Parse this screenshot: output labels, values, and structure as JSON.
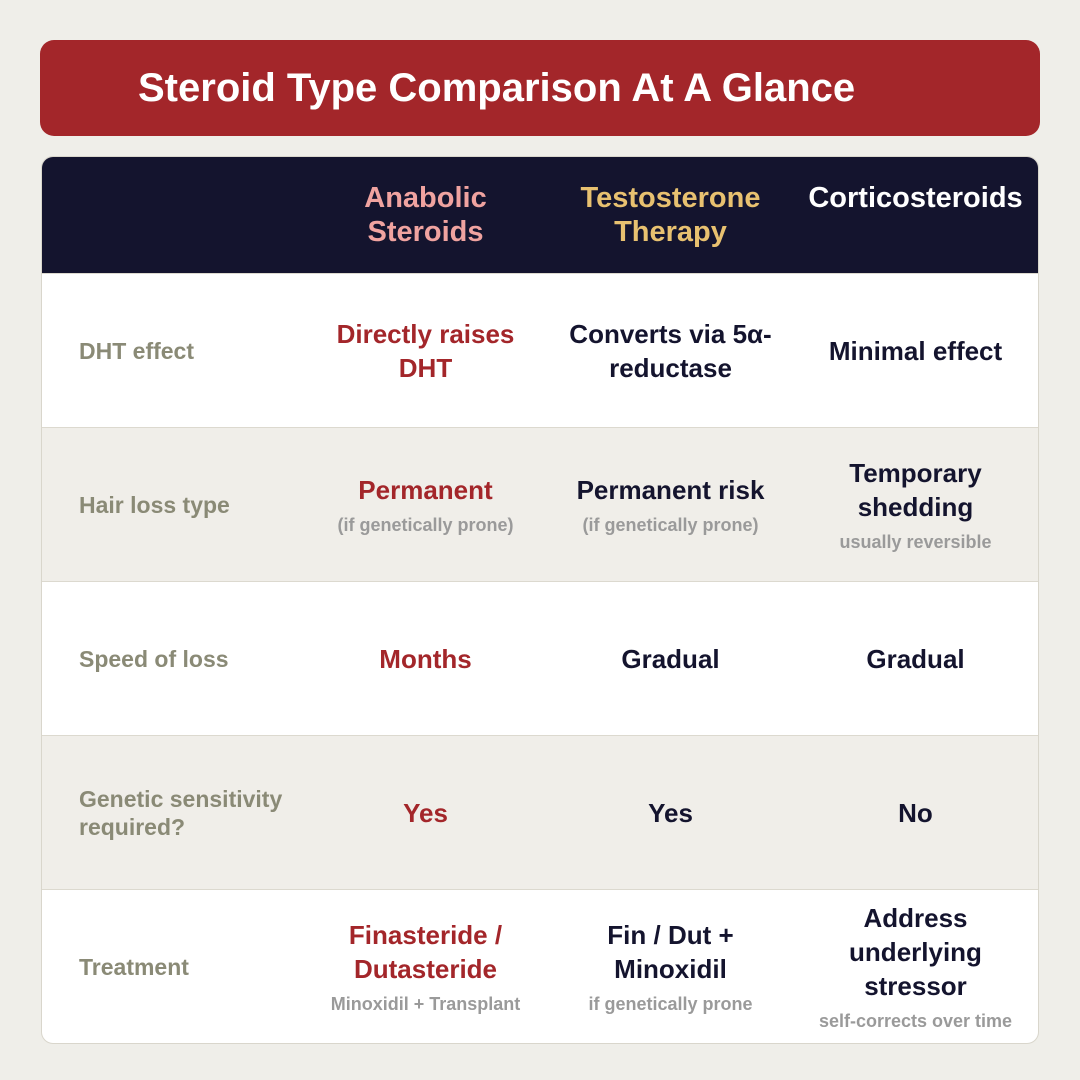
{
  "header": {
    "title": "Steroid Type Comparison At A Glance"
  },
  "table": {
    "columns": [
      "Anabolic Steroids",
      "Testosterone Therapy",
      "Corticosteroids"
    ],
    "rows": [
      {
        "label": "DHT effect",
        "cells": [
          {
            "main": "Directly raises DHT"
          },
          {
            "main": "Converts via 5α-reductase"
          },
          {
            "main": "Minimal effect"
          }
        ]
      },
      {
        "label": "Hair loss type",
        "cells": [
          {
            "main": "Permanent",
            "sub": "(if genetically prone)"
          },
          {
            "main": "Permanent risk",
            "sub": "(if genetically prone)"
          },
          {
            "main": "Temporary shedding",
            "sub": "usually reversible"
          }
        ]
      },
      {
        "label": "Speed of loss",
        "cells": [
          {
            "main": "Months"
          },
          {
            "main": "Gradual"
          },
          {
            "main": "Gradual"
          }
        ]
      },
      {
        "label": "Genetic sensitivity required?",
        "cells": [
          {
            "main": "Yes"
          },
          {
            "main": "Yes"
          },
          {
            "main": "No"
          }
        ]
      },
      {
        "label": "Treatment",
        "cells": [
          {
            "main": "Finasteride / Dutasteride",
            "sub": "Minoxidil + Transplant"
          },
          {
            "main": "Fin / Dut + Minoxidil",
            "sub": "if genetically prone"
          },
          {
            "main": "Address underlying stressor",
            "sub": "self-corrects over time"
          }
        ]
      }
    ]
  }
}
